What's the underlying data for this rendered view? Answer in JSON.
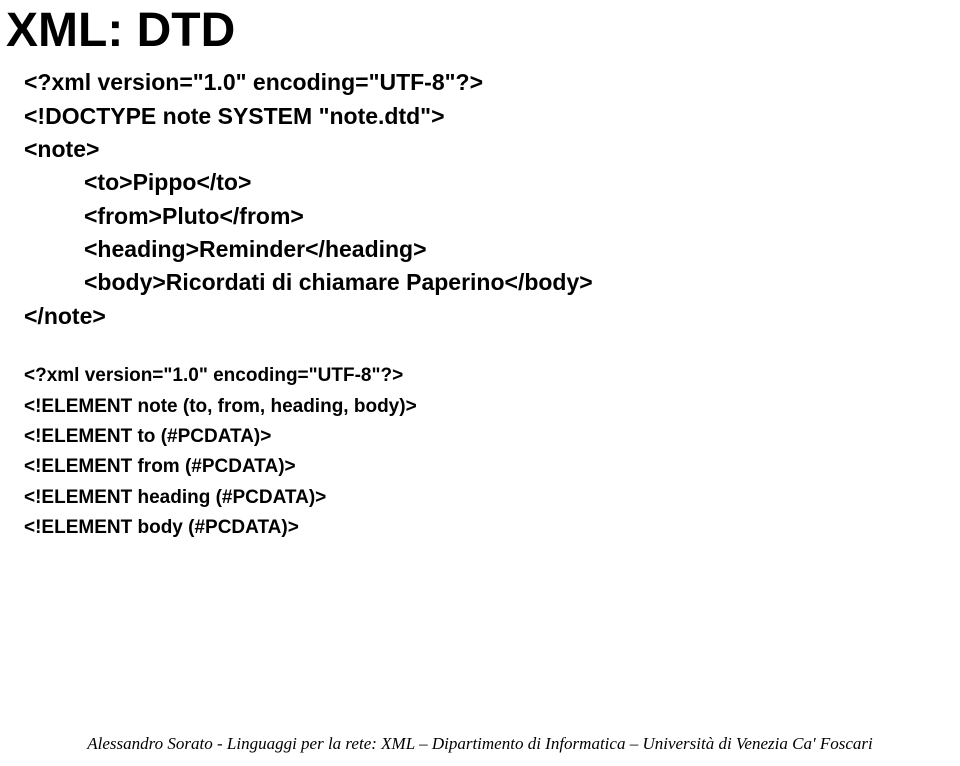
{
  "title": "XML: DTD",
  "code": {
    "line1": "<?xml version=\"1.0\" encoding=\"UTF-8\"?>",
    "line2": "<!DOCTYPE note SYSTEM \"note.dtd\">",
    "line3": "<note>",
    "line4": "<to>Pippo</to>",
    "line5": "<from>Pluto</from>",
    "line6": "<heading>Reminder</heading>",
    "line7": "<body>Ricordati di chiamare Paperino</body>",
    "line8": "</note>"
  },
  "small": {
    "line1": "<?xml version=\"1.0\" encoding=\"UTF-8\"?>",
    "line2": "<!ELEMENT note (to, from, heading, body)>",
    "line3": "<!ELEMENT to (#PCDATA)>",
    "line4": "<!ELEMENT from (#PCDATA)>",
    "line5": "<!ELEMENT heading (#PCDATA)>",
    "line6": "<!ELEMENT body (#PCDATA)>"
  },
  "footer": "Alessandro Sorato - Linguaggi per la rete: XML – Dipartimento di Informatica – Università di Venezia Ca' Foscari"
}
